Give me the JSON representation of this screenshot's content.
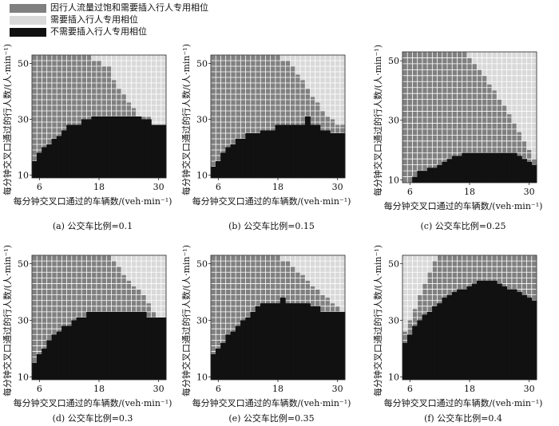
{
  "legend": [
    {
      "label": "因行人流量过饱和需要插入行人专用相位",
      "color": "#808080"
    },
    {
      "label": "需要插入行人专用相位",
      "color": "#d9d9d9"
    },
    {
      "label": "不需要插入行人专用相位",
      "color": "#111111"
    }
  ],
  "colors": {
    "saturated": "#808080",
    "need": "#d9d9d9",
    "none": "#111111",
    "grid": "#ffffff"
  },
  "chart_data": [
    {
      "type": "heatmap",
      "caption": "(a) 公交车比例=0.1",
      "xlabel": "每分钟交叉口通过的车辆数/(veh·min⁻¹)",
      "ylabel": "每分钟交叉口通过的行人数/(人·min⁻¹)",
      "x_ticks": [
        6,
        18,
        30
      ],
      "y_ticks": [
        10,
        30,
        50
      ],
      "x_range": [
        4,
        32
      ],
      "y_range": [
        9,
        53
      ],
      "black_upper": [
        15,
        18,
        20,
        21,
        23,
        24,
        26,
        28,
        28,
        28,
        30,
        30,
        31,
        31,
        31,
        31,
        31,
        31,
        31,
        31,
        31,
        31,
        30,
        30,
        28,
        28,
        28
      ],
      "gray_upper": [
        53,
        53,
        53,
        53,
        53,
        53,
        53,
        53,
        53,
        53,
        53,
        53,
        51,
        51,
        49,
        49,
        44,
        41,
        39,
        36,
        34,
        31,
        31,
        31,
        28,
        28,
        28
      ]
    },
    {
      "type": "heatmap",
      "caption": "(b) 公交车比例=0.15",
      "xlabel": "每分钟交叉口通过的车辆数/(veh·min⁻¹)",
      "ylabel": "每分钟交叉口通过的行人数/(人·min⁻¹)",
      "x_ticks": [
        6,
        18,
        30
      ],
      "y_ticks": [
        10,
        30,
        50
      ],
      "x_range": [
        4,
        32
      ],
      "y_range": [
        9,
        53
      ],
      "black_upper": [
        13,
        15,
        18,
        20,
        21,
        23,
        23,
        25,
        25,
        25,
        26,
        26,
        26,
        28,
        28,
        28,
        28,
        28,
        28,
        31,
        28,
        28,
        26,
        26,
        25,
        25,
        25
      ],
      "gray_upper": [
        53,
        53,
        53,
        53,
        53,
        53,
        53,
        53,
        53,
        53,
        53,
        53,
        53,
        53,
        51,
        51,
        49,
        46,
        44,
        41,
        38,
        36,
        33,
        31,
        30,
        28,
        28
      ]
    },
    {
      "type": "heatmap",
      "caption": "(c) 公交车比例=0.25",
      "xlabel": "每分钟交叉口通过的车辆数/(veh·min⁻¹)",
      "ylabel": "每分钟交叉口通过的行人数/(人·min⁻¹)",
      "x_ticks": [
        6,
        18,
        30
      ],
      "y_ticks": [
        10,
        30,
        50
      ],
      "x_range": [
        4,
        32
      ],
      "y_range": [
        9,
        53
      ],
      "black_upper": [
        9,
        9,
        11,
        13,
        13,
        14,
        14,
        15,
        16,
        17,
        18,
        18,
        19,
        19,
        19,
        19,
        19,
        19,
        19,
        19,
        19,
        19,
        19,
        18,
        17,
        16,
        15
      ],
      "gray_upper": [
        53,
        53,
        53,
        53,
        53,
        53,
        53,
        53,
        53,
        53,
        53,
        53,
        53,
        51,
        49,
        47,
        45,
        42,
        40,
        37,
        35,
        32,
        29,
        26,
        23,
        20,
        17
      ]
    },
    {
      "type": "heatmap",
      "caption": "(d) 公交车比例=0.3",
      "xlabel": "每分钟交叉口通过的车辆数/(veh·min⁻¹)",
      "ylabel": "每分钟交叉口通过的行人数/(人·min⁻¹)",
      "x_ticks": [
        6,
        18,
        30
      ],
      "y_ticks": [
        10,
        30,
        50
      ],
      "x_range": [
        4,
        32
      ],
      "y_range": [
        9,
        53
      ],
      "black_upper": [
        15,
        18,
        20,
        23,
        25,
        26,
        28,
        28,
        30,
        31,
        31,
        33,
        33,
        33,
        33,
        33,
        33,
        33,
        33,
        33,
        33,
        33,
        33,
        31,
        31,
        31,
        31
      ],
      "gray_upper": [
        53,
        53,
        53,
        53,
        53,
        53,
        53,
        53,
        53,
        53,
        53,
        53,
        53,
        53,
        53,
        53,
        51,
        49,
        46,
        44,
        42,
        41,
        39,
        36,
        33,
        31,
        31
      ]
    },
    {
      "type": "heatmap",
      "caption": "(e) 公交车比例=0.35",
      "xlabel": "每分钟交叉口通过的车辆数/(veh·min⁻¹)",
      "ylabel": "每分钟交叉口通过的行人数/(人·min⁻¹)",
      "x_ticks": [
        6,
        18,
        30
      ],
      "y_ticks": [
        10,
        30,
        50
      ],
      "x_range": [
        4,
        32
      ],
      "y_range": [
        9,
        53
      ],
      "black_upper": [
        18,
        20,
        22,
        25,
        26,
        28,
        30,
        31,
        33,
        35,
        36,
        36,
        36,
        36,
        38,
        36,
        36,
        36,
        36,
        36,
        35,
        35,
        33,
        33,
        33,
        33,
        33
      ],
      "gray_upper": [
        53,
        53,
        53,
        53,
        53,
        53,
        53,
        53,
        53,
        53,
        53,
        53,
        53,
        53,
        51,
        51,
        49,
        47,
        46,
        44,
        42,
        41,
        39,
        38,
        36,
        35,
        33
      ]
    },
    {
      "type": "heatmap",
      "caption": "(f) 公交车比例=0.4",
      "xlabel": "每分钟交叉口通过的车辆数/(veh·min⁻¹)",
      "ylabel": "每分钟交叉口通过的行人数/(人·min⁻¹)",
      "x_ticks": [
        6,
        18,
        30
      ],
      "y_ticks": [
        10,
        30,
        50
      ],
      "x_range": [
        4,
        32
      ],
      "y_range": [
        9,
        53
      ],
      "black_upper": [
        22,
        25,
        28,
        30,
        32,
        33,
        35,
        36,
        38,
        39,
        40,
        41,
        41,
        42,
        43,
        44,
        44,
        44,
        44,
        43,
        42,
        41,
        41,
        40,
        39,
        38,
        37
      ],
      "gray_upper": [
        26,
        30,
        34,
        39,
        43,
        47,
        51,
        53,
        53,
        53,
        53,
        53,
        53,
        53,
        53,
        53,
        53,
        53,
        53,
        53,
        53,
        53,
        53,
        53,
        53,
        53,
        53
      ]
    }
  ]
}
